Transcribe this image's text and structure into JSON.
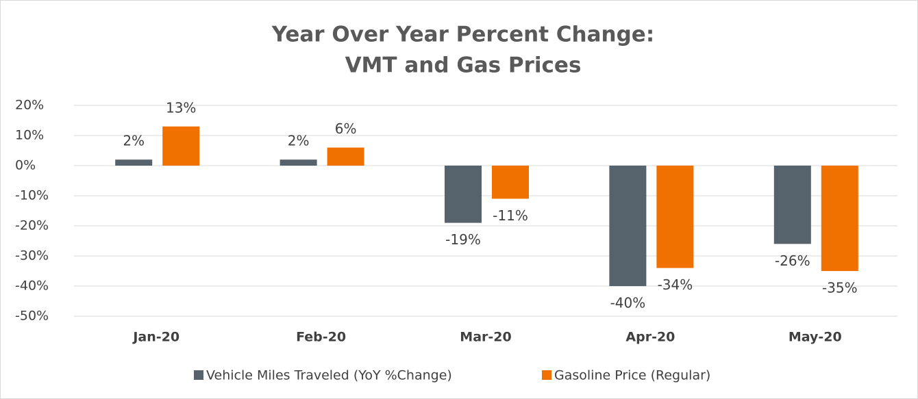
{
  "chart_data": {
    "type": "bar",
    "title": [
      "Year Over Year Percent Change:",
      "VMT and Gas Prices"
    ],
    "categories": [
      "Jan-20",
      "Feb-20",
      "Mar-20",
      "Apr-20",
      "May-20"
    ],
    "series": [
      {
        "name": "Vehicle Miles Traveled (YoY %Change)",
        "color": "#56626c",
        "values": [
          2,
          2,
          -19,
          -40,
          -26
        ],
        "value_labels": [
          "2%",
          "2%",
          "-19%",
          "-40%",
          "-26%"
        ]
      },
      {
        "name": "Gasoline Price (Regular)",
        "color": "#f07000",
        "values": [
          13,
          6,
          -11,
          -34,
          -35
        ],
        "value_labels": [
          "13%",
          "6%",
          "-11%",
          "-34%",
          "-35%"
        ]
      }
    ],
    "ylim": [
      -50,
      20
    ],
    "yticks": [
      {
        "value": 20,
        "label": "20%"
      },
      {
        "value": 10,
        "label": "10%"
      },
      {
        "value": 0,
        "label": "0%"
      },
      {
        "value": -10,
        "label": "-10%"
      },
      {
        "value": -20,
        "label": "-20%"
      },
      {
        "value": -30,
        "label": "-30%"
      },
      {
        "value": -40,
        "label": "-40%"
      },
      {
        "value": -50,
        "label": "-50%"
      }
    ],
    "grid": true,
    "legend": "bottom"
  }
}
